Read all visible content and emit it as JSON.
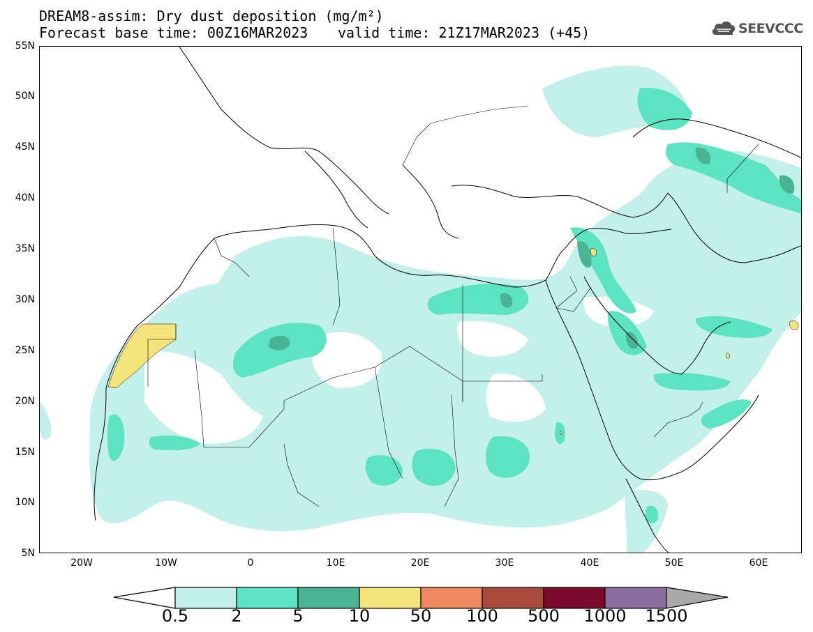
{
  "title": {
    "line1": "DREAM8-assim: Dry dust deposition (mg/m²)",
    "line2": "Forecast base time: 00Z16MAR2023",
    "valid": "valid time: 21Z17MAR2023 (+45)"
  },
  "logo": {
    "text": "SEEVCCC",
    "icon": "cloud-logo-icon"
  },
  "axes": {
    "lat_labels": [
      "55N",
      "50N",
      "45N",
      "40N",
      "35N",
      "30N",
      "25N",
      "20N",
      "15N",
      "10N",
      "5N"
    ],
    "lon_labels": [
      "20W",
      "10W",
      "0",
      "10E",
      "20E",
      "30E",
      "40E",
      "50E",
      "60E"
    ]
  },
  "colorbar": {
    "labels": [
      "0.5",
      "2",
      "5",
      "10",
      "50",
      "100",
      "500",
      "1000",
      "1500"
    ],
    "colors": [
      "#c3f0ea",
      "#5ce3c2",
      "#49b394",
      "#f5e47a",
      "#ed8a62",
      "#a84a3c",
      "#7a0a2c",
      "#8c6c9c",
      "#a8a8a8"
    ],
    "underflow_color": "#ffffff"
  },
  "map_colors": {
    "level_0_5": "#c3f0ea",
    "level_2": "#5ce3c2",
    "level_5": "#49b394",
    "level_10": "#f5e47a"
  }
}
